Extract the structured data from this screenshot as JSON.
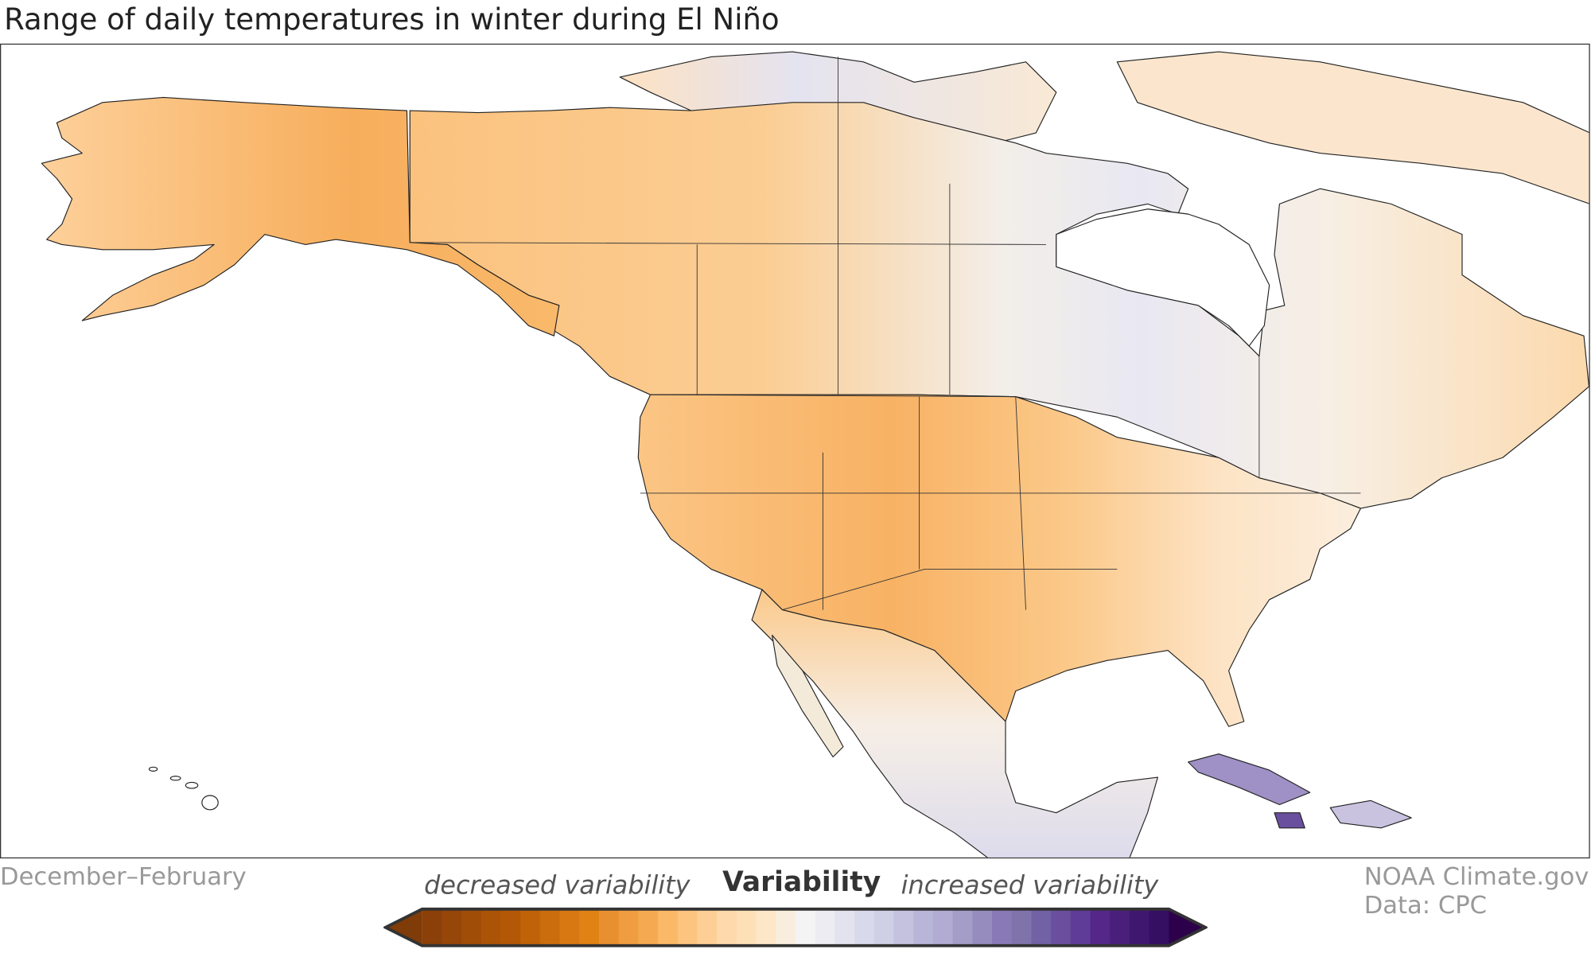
{
  "title": "Range of daily temperatures in winter during El Niño",
  "season": "December–February",
  "credit": {
    "line1": "NOAA Climate.gov",
    "line2": "Data: CPC"
  },
  "legend": {
    "title": "Variability",
    "low_label": "decreased variability",
    "high_label": "increased variability",
    "colors": [
      "#7f3b08",
      "#8a4008",
      "#954608",
      "#a04d07",
      "#ab5306",
      "#b35806",
      "#c06208",
      "#cc6d0d",
      "#d87812",
      "#e08214",
      "#e89030",
      "#ef9d40",
      "#f5aa52",
      "#fbb866",
      "#fdc47f",
      "#fdcf96",
      "#fed9ab",
      "#fee0b6",
      "#fde7c8",
      "#f9eedd",
      "#f4f4f4",
      "#ececf2",
      "#e3e3ef",
      "#d8daeb",
      "#cfcfe5",
      "#c4c2df",
      "#b9b5d9",
      "#b2abd2",
      "#a49dc8",
      "#968dbe",
      "#8979b6",
      "#8073ac",
      "#7261a5",
      "#6a4f9e",
      "#5f3c97",
      "#542788",
      "#4a1f7c",
      "#40176f",
      "#350f62",
      "#2d004b"
    ]
  }
}
